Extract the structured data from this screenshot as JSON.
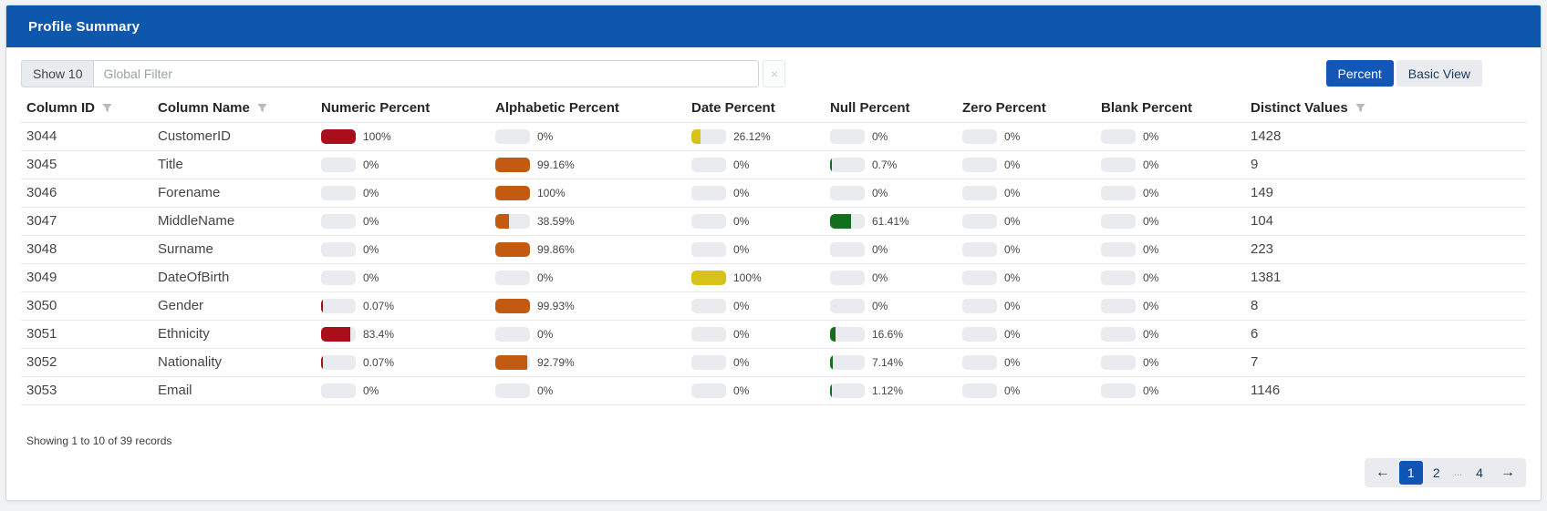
{
  "panel": {
    "title": "Profile Summary"
  },
  "toolbar": {
    "show_button": "Show 10",
    "filter_placeholder": "Global Filter",
    "clear_icon": "×",
    "view_toggle": [
      {
        "label": "Percent",
        "active": true
      },
      {
        "label": "Basic View",
        "active": false
      }
    ]
  },
  "table": {
    "columns": [
      {
        "label": "Column ID",
        "filterable": true
      },
      {
        "label": "Column Name",
        "filterable": true
      },
      {
        "label": "Numeric Percent",
        "filterable": false
      },
      {
        "label": "Alphabetic Percent",
        "filterable": false
      },
      {
        "label": "Date Percent",
        "filterable": false
      },
      {
        "label": "Null Percent",
        "filterable": false
      },
      {
        "label": "Zero Percent",
        "filterable": false
      },
      {
        "label": "Blank Percent",
        "filterable": false
      },
      {
        "label": "Distinct Values",
        "filterable": true
      }
    ],
    "bar_colors": {
      "numeric": "#a90e1b",
      "alphabetic": "#c35a11",
      "date": "#d8c21a",
      "null": "#136f1e",
      "zero": "#e9ebee",
      "blank": "#e9ebee",
      "track": "#e9ebee"
    },
    "rows": [
      {
        "id": "3044",
        "name": "CustomerID",
        "numeric": "100%",
        "alphabetic": "0%",
        "date": "26.12%",
        "null": "0%",
        "zero": "0%",
        "blank": "0%",
        "distinct": "1428"
      },
      {
        "id": "3045",
        "name": "Title",
        "numeric": "0%",
        "alphabetic": "99.16%",
        "date": "0%",
        "null": "0.7%",
        "zero": "0%",
        "blank": "0%",
        "distinct": "9"
      },
      {
        "id": "3046",
        "name": "Forename",
        "numeric": "0%",
        "alphabetic": "100%",
        "date": "0%",
        "null": "0%",
        "zero": "0%",
        "blank": "0%",
        "distinct": "149"
      },
      {
        "id": "3047",
        "name": "MiddleName",
        "numeric": "0%",
        "alphabetic": "38.59%",
        "date": "0%",
        "null": "61.41%",
        "zero": "0%",
        "blank": "0%",
        "distinct": "104"
      },
      {
        "id": "3048",
        "name": "Surname",
        "numeric": "0%",
        "alphabetic": "99.86%",
        "date": "0%",
        "null": "0%",
        "zero": "0%",
        "blank": "0%",
        "distinct": "223"
      },
      {
        "id": "3049",
        "name": "DateOfBirth",
        "numeric": "0%",
        "alphabetic": "0%",
        "date": "100%",
        "null": "0%",
        "zero": "0%",
        "blank": "0%",
        "distinct": "1381"
      },
      {
        "id": "3050",
        "name": "Gender",
        "numeric": "0.07%",
        "alphabetic": "99.93%",
        "date": "0%",
        "null": "0%",
        "zero": "0%",
        "blank": "0%",
        "distinct": "8"
      },
      {
        "id": "3051",
        "name": "Ethnicity",
        "numeric": "83.4%",
        "alphabetic": "0%",
        "date": "0%",
        "null": "16.6%",
        "zero": "0%",
        "blank": "0%",
        "distinct": "6"
      },
      {
        "id": "3052",
        "name": "Nationality",
        "numeric": "0.07%",
        "alphabetic": "92.79%",
        "date": "0%",
        "null": "7.14%",
        "zero": "0%",
        "blank": "0%",
        "distinct": "7"
      },
      {
        "id": "3053",
        "name": "Email",
        "numeric": "0%",
        "alphabetic": "0%",
        "date": "0%",
        "null": "1.12%",
        "zero": "0%",
        "blank": "0%",
        "distinct": "1146"
      }
    ]
  },
  "footer": {
    "summary": "Showing 1 to 10 of 39 records",
    "pagination": {
      "prev_icon": "←",
      "next_icon": "→",
      "pages": [
        {
          "label": "1",
          "active": true
        },
        {
          "label": "2",
          "active": false
        },
        {
          "label": "...",
          "ellipsis": true
        },
        {
          "label": "4",
          "active": false
        }
      ]
    }
  },
  "colors": {
    "header_bg": "#0d57ad",
    "accent_blue": "#1257b8",
    "active_page_bg": "#1155b4"
  }
}
